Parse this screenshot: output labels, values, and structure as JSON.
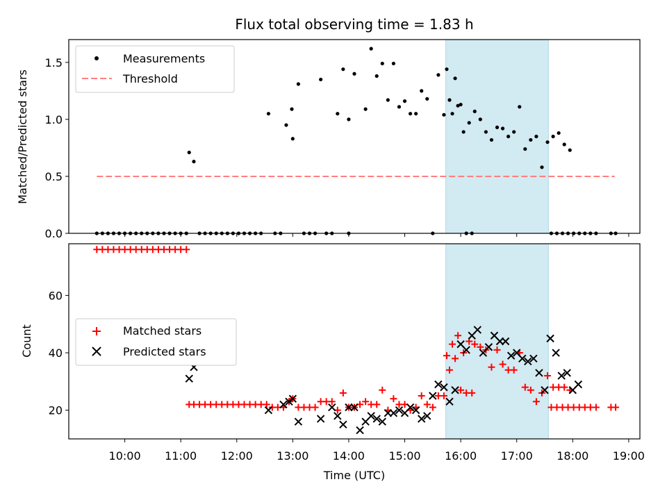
{
  "chart_data": [
    {
      "type": "scatter",
      "title": "Flux total observing time = 1.83 h",
      "xlabel": "",
      "ylabel": "Matched/Predicted stars",
      "xlim": [
        "09:00",
        "19:12"
      ],
      "ylim": [
        0,
        1.7
      ],
      "yticks": [
        "0.0",
        "0.5",
        "1.0",
        "1.5"
      ],
      "shaded_region": {
        "x": [
          "15:44",
          "17:34"
        ],
        "color": "#add8e6"
      },
      "legend_position": "top-left",
      "legend": {
        "measurements": "Measurements",
        "threshold": "Threshold"
      },
      "threshold_line": {
        "y": 0.5,
        "x": [
          "09:30",
          "18:45"
        ],
        "color": "#ff7f7f",
        "style": "dashed"
      },
      "series": [
        {
          "name": "Measurements",
          "color": "#000000",
          "points": [
            [
              "09:30",
              0
            ],
            [
              "09:36",
              0
            ],
            [
              "09:42",
              0
            ],
            [
              "09:48",
              0
            ],
            [
              "09:54",
              0
            ],
            [
              "10:00",
              0
            ],
            [
              "10:06",
              0
            ],
            [
              "10:12",
              0
            ],
            [
              "10:18",
              0
            ],
            [
              "10:24",
              0
            ],
            [
              "10:30",
              0
            ],
            [
              "10:36",
              0
            ],
            [
              "10:42",
              0
            ],
            [
              "10:48",
              0
            ],
            [
              "10:54",
              0
            ],
            [
              "11:00",
              0
            ],
            [
              "11:06",
              0
            ],
            [
              "11:09",
              0.71
            ],
            [
              "11:14",
              0.63
            ],
            [
              "11:20",
              0
            ],
            [
              "11:26",
              0
            ],
            [
              "11:32",
              0
            ],
            [
              "11:38",
              0
            ],
            [
              "11:44",
              0
            ],
            [
              "11:50",
              0
            ],
            [
              "11:56",
              0
            ],
            [
              "12:02",
              0
            ],
            [
              "12:08",
              0
            ],
            [
              "12:14",
              0
            ],
            [
              "12:20",
              0
            ],
            [
              "12:26",
              0
            ],
            [
              "12:34",
              1.05
            ],
            [
              "12:41",
              0
            ],
            [
              "12:47",
              0
            ],
            [
              "12:53",
              0.95
            ],
            [
              "12:59",
              1.09
            ],
            [
              "13:00",
              0.83
            ],
            [
              "13:06",
              1.31
            ],
            [
              "13:12",
              0
            ],
            [
              "13:18",
              0
            ],
            [
              "13:24",
              0
            ],
            [
              "13:30",
              1.35
            ],
            [
              "13:36",
              0
            ],
            [
              "13:42",
              0
            ],
            [
              "13:48",
              1.05
            ],
            [
              "13:54",
              1.44
            ],
            [
              "14:00",
              1.0
            ],
            [
              "14:06",
              1.4
            ],
            [
              "14:00",
              0
            ],
            [
              "14:18",
              1.09
            ],
            [
              "14:24",
              1.62
            ],
            [
              "14:30",
              1.38
            ],
            [
              "14:36",
              1.49
            ],
            [
              "14:42",
              1.17
            ],
            [
              "14:48",
              1.49
            ],
            [
              "14:54",
              1.11
            ],
            [
              "15:00",
              1.16
            ],
            [
              "15:06",
              1.05
            ],
            [
              "15:12",
              1.05
            ],
            [
              "15:18",
              1.25
            ],
            [
              "15:24",
              1.18
            ],
            [
              "15:30",
              0
            ],
            [
              "15:36",
              1.39
            ],
            [
              "15:42",
              1.04
            ],
            [
              "15:48",
              1.17
            ],
            [
              "15:54",
              1.36
            ],
            [
              "16:00",
              1.13
            ],
            [
              "16:06",
              0
            ],
            [
              "16:12",
              0
            ],
            [
              "15:45",
              1.44
            ],
            [
              "15:51",
              1.05
            ],
            [
              "15:57",
              1.12
            ],
            [
              "16:03",
              0.89
            ],
            [
              "16:09",
              0.97
            ],
            [
              "16:15",
              1.07
            ],
            [
              "16:21",
              1.0
            ],
            [
              "16:27",
              0.89
            ],
            [
              "16:33",
              0.82
            ],
            [
              "16:39",
              0.93
            ],
            [
              "16:45",
              0.92
            ],
            [
              "16:51",
              0.85
            ],
            [
              "16:57",
              0.89
            ],
            [
              "17:03",
              1.11
            ],
            [
              "17:09",
              0.74
            ],
            [
              "17:15",
              0.82
            ],
            [
              "17:21",
              0.85
            ],
            [
              "17:27",
              0.58
            ],
            [
              "17:33",
              0.8
            ],
            [
              "17:39",
              0.85
            ],
            [
              "17:45",
              0.88
            ],
            [
              "17:51",
              0.78
            ],
            [
              "17:57",
              0.73
            ],
            [
              "17:37",
              0
            ],
            [
              "17:43",
              0
            ],
            [
              "17:49",
              0
            ],
            [
              "17:55",
              0
            ],
            [
              "18:01",
              0
            ],
            [
              "18:07",
              0
            ],
            [
              "18:13",
              0
            ],
            [
              "18:19",
              0
            ],
            [
              "18:25",
              0
            ],
            [
              "18:41",
              0
            ],
            [
              "18:46",
              0
            ]
          ]
        }
      ]
    },
    {
      "type": "scatter",
      "title": "",
      "xlabel": "Time (UTC)",
      "ylabel": "Count",
      "xlim": [
        "09:00",
        "19:12"
      ],
      "ylim": [
        10,
        78
      ],
      "xticks": [
        "10:00",
        "11:00",
        "12:00",
        "13:00",
        "14:00",
        "15:00",
        "16:00",
        "17:00",
        "18:00",
        "19:00"
      ],
      "yticks": [
        "20",
        "40",
        "60"
      ],
      "shaded_region": {
        "x": [
          "15:44",
          "17:34"
        ],
        "color": "#add8e6"
      },
      "legend_position": "center-left",
      "legend": {
        "matched": "Matched stars",
        "predicted": "Predicted stars"
      },
      "series": [
        {
          "name": "Matched stars",
          "marker": "+",
          "color": "#ff0000",
          "points": [
            [
              "09:30",
              76
            ],
            [
              "09:36",
              76
            ],
            [
              "09:42",
              76
            ],
            [
              "09:48",
              76
            ],
            [
              "09:54",
              76
            ],
            [
              "10:00",
              76
            ],
            [
              "10:06",
              76
            ],
            [
              "10:12",
              76
            ],
            [
              "10:18",
              76
            ],
            [
              "10:24",
              76
            ],
            [
              "10:30",
              76
            ],
            [
              "10:36",
              76
            ],
            [
              "10:42",
              76
            ],
            [
              "10:48",
              76
            ],
            [
              "10:54",
              76
            ],
            [
              "11:00",
              76
            ],
            [
              "11:06",
              76
            ],
            [
              "11:09",
              22
            ],
            [
              "11:14",
              22
            ],
            [
              "11:20",
              22
            ],
            [
              "11:26",
              22
            ],
            [
              "11:32",
              22
            ],
            [
              "11:38",
              22
            ],
            [
              "11:44",
              22
            ],
            [
              "11:50",
              22
            ],
            [
              "11:56",
              22
            ],
            [
              "12:02",
              22
            ],
            [
              "12:08",
              22
            ],
            [
              "12:14",
              22
            ],
            [
              "12:20",
              22
            ],
            [
              "12:26",
              22
            ],
            [
              "12:32",
              22
            ],
            [
              "12:38",
              21
            ],
            [
              "12:44",
              21
            ],
            [
              "12:50",
              21
            ],
            [
              "12:56",
              23
            ],
            [
              "13:00",
              24
            ],
            [
              "13:06",
              21
            ],
            [
              "13:12",
              21
            ],
            [
              "13:18",
              21
            ],
            [
              "13:24",
              21
            ],
            [
              "13:30",
              23
            ],
            [
              "13:36",
              23
            ],
            [
              "13:42",
              23
            ],
            [
              "13:48",
              20
            ],
            [
              "13:54",
              26
            ],
            [
              "14:00",
              21
            ],
            [
              "14:06",
              21
            ],
            [
              "14:12",
              22
            ],
            [
              "14:18",
              23
            ],
            [
              "14:24",
              22
            ],
            [
              "14:30",
              22
            ],
            [
              "14:36",
              27
            ],
            [
              "14:42",
              20
            ],
            [
              "14:48",
              24
            ],
            [
              "14:54",
              22
            ],
            [
              "15:00",
              22
            ],
            [
              "15:06",
              20
            ],
            [
              "15:12",
              21
            ],
            [
              "15:18",
              25
            ],
            [
              "15:24",
              22
            ],
            [
              "15:30",
              21
            ],
            [
              "15:36",
              25
            ],
            [
              "15:42",
              25
            ],
            [
              "15:48",
              34
            ],
            [
              "15:54",
              38
            ],
            [
              "16:00",
              27
            ],
            [
              "16:06",
              26
            ],
            [
              "16:12",
              26
            ],
            [
              "15:45",
              39
            ],
            [
              "15:51",
              43
            ],
            [
              "15:57",
              46
            ],
            [
              "16:03",
              40
            ],
            [
              "16:09",
              44
            ],
            [
              "16:15",
              43
            ],
            [
              "16:21",
              42
            ],
            [
              "16:27",
              41
            ],
            [
              "16:33",
              35
            ],
            [
              "16:39",
              41
            ],
            [
              "16:45",
              36
            ],
            [
              "16:51",
              34
            ],
            [
              "16:57",
              34
            ],
            [
              "17:03",
              40
            ],
            [
              "17:09",
              28
            ],
            [
              "17:15",
              27
            ],
            [
              "17:21",
              23
            ],
            [
              "17:27",
              26
            ],
            [
              "17:33",
              32
            ],
            [
              "17:39",
              28
            ],
            [
              "17:45",
              28
            ],
            [
              "17:51",
              28
            ],
            [
              "17:57",
              27
            ],
            [
              "17:37",
              21
            ],
            [
              "17:43",
              21
            ],
            [
              "17:49",
              21
            ],
            [
              "17:55",
              21
            ],
            [
              "18:01",
              21
            ],
            [
              "18:07",
              21
            ],
            [
              "18:13",
              21
            ],
            [
              "18:19",
              21
            ],
            [
              "18:25",
              21
            ],
            [
              "18:41",
              21
            ],
            [
              "18:46",
              21
            ]
          ]
        },
        {
          "name": "Predicted stars",
          "marker": "x",
          "color": "#000000",
          "points": [
            [
              "11:09",
              31
            ],
            [
              "11:14",
              35
            ],
            [
              "12:34",
              20
            ],
            [
              "12:50",
              22
            ],
            [
              "12:56",
              23
            ],
            [
              "13:00",
              24
            ],
            [
              "13:06",
              16
            ],
            [
              "13:30",
              17
            ],
            [
              "13:42",
              21
            ],
            [
              "13:48",
              18
            ],
            [
              "13:54",
              15
            ],
            [
              "14:00",
              21
            ],
            [
              "14:06",
              21
            ],
            [
              "14:12",
              13
            ],
            [
              "14:18",
              16
            ],
            [
              "14:24",
              18
            ],
            [
              "14:30",
              17
            ],
            [
              "14:36",
              16
            ],
            [
              "14:42",
              19
            ],
            [
              "14:48",
              19
            ],
            [
              "14:54",
              20
            ],
            [
              "15:00",
              19
            ],
            [
              "15:06",
              21
            ],
            [
              "15:12",
              20
            ],
            [
              "15:18",
              17
            ],
            [
              "15:24",
              18
            ],
            [
              "15:30",
              25
            ],
            [
              "15:36",
              29
            ],
            [
              "15:42",
              28
            ],
            [
              "15:48",
              23
            ],
            [
              "15:54",
              27
            ],
            [
              "16:00",
              43
            ],
            [
              "16:06",
              41
            ],
            [
              "16:12",
              46
            ],
            [
              "16:18",
              48
            ],
            [
              "16:24",
              40
            ],
            [
              "16:30",
              42
            ],
            [
              "16:36",
              46
            ],
            [
              "16:42",
              44
            ],
            [
              "16:48",
              44
            ],
            [
              "16:54",
              39
            ],
            [
              "17:00",
              40
            ],
            [
              "17:06",
              38
            ],
            [
              "17:12",
              37
            ],
            [
              "17:18",
              38
            ],
            [
              "17:24",
              33
            ],
            [
              "17:30",
              27
            ],
            [
              "17:36",
              45
            ],
            [
              "17:42",
              40
            ],
            [
              "17:48",
              32
            ],
            [
              "17:54",
              33
            ],
            [
              "18:00",
              27
            ],
            [
              "18:06",
              29
            ]
          ]
        }
      ]
    }
  ]
}
